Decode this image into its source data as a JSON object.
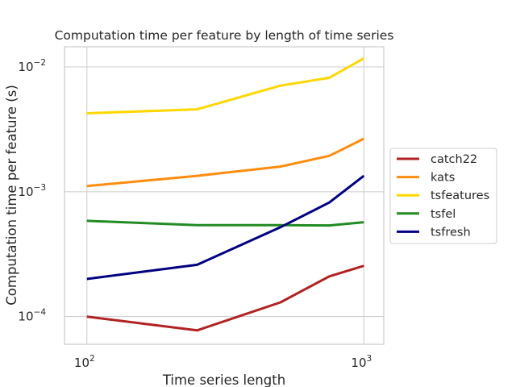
{
  "chart_data": {
    "type": "line",
    "title": "Computation time per feature by length of time series",
    "xlabel": "Time series length",
    "ylabel": "Computation time per feature (s)",
    "xscale": "log",
    "yscale": "log",
    "xlim": [
      83,
      1180
    ],
    "ylim": [
      6e-05,
      0.0145
    ],
    "x": [
      100,
      250,
      500,
      750,
      1000
    ],
    "xticks": [
      {
        "value": 100,
        "base": "10",
        "exp": "2"
      },
      {
        "value": 1000,
        "base": "10",
        "exp": "3"
      }
    ],
    "yticks": [
      {
        "value": 0.0001,
        "base": "10",
        "exp": "−4"
      },
      {
        "value": 0.001,
        "base": "10",
        "exp": "−3"
      },
      {
        "value": 0.01,
        "base": "10",
        "exp": "−2"
      }
    ],
    "grid": true,
    "legend_position": "right",
    "series": [
      {
        "name": "catch22",
        "color": "#b22222",
        "values": [
          0.0001,
          7.75e-05,
          0.00013,
          0.00021,
          0.000255
        ]
      },
      {
        "name": "kats",
        "color": "#ff8c0f",
        "values": [
          0.00111,
          0.00134,
          0.00159,
          0.00194,
          0.00266
        ]
      },
      {
        "name": "tsfeatures",
        "color": "#ffd700",
        "values": [
          0.00425,
          0.00457,
          0.00708,
          0.00818,
          0.0117
        ]
      },
      {
        "name": "tsfel",
        "color": "#228b22",
        "values": [
          0.000585,
          0.00054,
          0.00054,
          0.000537,
          0.00057
        ]
      },
      {
        "name": "tsfresh",
        "color": "#000080",
        "values": [
          0.0002,
          0.00026,
          0.00052,
          0.00082,
          0.00134
        ]
      }
    ]
  }
}
